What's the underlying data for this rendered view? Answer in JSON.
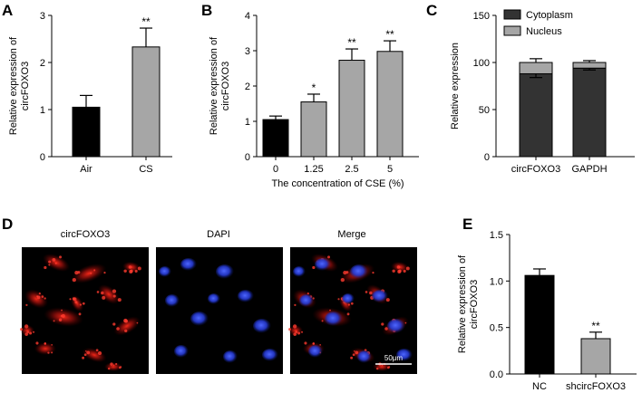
{
  "panels": {
    "A": {
      "letter": "A"
    },
    "B": {
      "letter": "B"
    },
    "C": {
      "letter": "C"
    },
    "D": {
      "letter": "D",
      "image_titles": [
        "circFOXO3",
        "DAPI",
        "Merge"
      ],
      "scale_bar": "50μm"
    },
    "E": {
      "letter": "E"
    }
  },
  "colors": {
    "black": "#000000",
    "gray": "#a6a6a6",
    "dark": "#333333",
    "light": "#a6a6a6",
    "red": "#e0201c",
    "blue": "#2b3ec9"
  },
  "chart_data": [
    {
      "id": "A",
      "type": "bar",
      "categories": [
        "Air",
        "CS"
      ],
      "values": [
        1.05,
        2.33
      ],
      "errors": [
        0.25,
        0.4
      ],
      "significance": [
        "",
        "**"
      ],
      "bar_colors": [
        "#000000",
        "#a6a6a6"
      ],
      "title": "",
      "xlabel": "",
      "ylabel": "Relative expression of circFOXO3",
      "ylim": [
        0,
        3
      ],
      "yticks": [
        "0",
        "1",
        "2",
        "3"
      ]
    },
    {
      "id": "B",
      "type": "bar",
      "categories": [
        "0",
        "1.25",
        "2.5",
        "5"
      ],
      "values": [
        1.05,
        1.55,
        2.73,
        2.98
      ],
      "errors": [
        0.1,
        0.22,
        0.32,
        0.3
      ],
      "significance": [
        "",
        "*",
        "**",
        "**"
      ],
      "bar_colors": [
        "#000000",
        "#a6a6a6",
        "#a6a6a6",
        "#a6a6a6"
      ],
      "title": "",
      "xlabel": "The concentration of CSE (%)",
      "ylabel": "Relative expression of circFOXO3",
      "ylim": [
        0,
        4
      ],
      "yticks": [
        "0",
        "1",
        "2",
        "3",
        "4"
      ]
    },
    {
      "id": "C",
      "type": "bar",
      "stacked": true,
      "categories": [
        "circFOXO3",
        "GAPDH"
      ],
      "series": [
        {
          "name": "Cytoplasm",
          "values": [
            88,
            94
          ],
          "errors": [
            4,
            2
          ],
          "color": "#333333"
        },
        {
          "name": "Nucleus",
          "values": [
            12,
            6
          ],
          "errors": [
            4,
            2
          ],
          "color": "#a6a6a6"
        }
      ],
      "title": "",
      "xlabel": "",
      "ylabel": "Relative expression",
      "ylim": [
        0,
        150
      ],
      "yticks": [
        "0",
        "50",
        "100",
        "150"
      ],
      "legend": "top-left"
    },
    {
      "id": "E",
      "type": "bar",
      "categories": [
        "NC",
        "shcircFOXO3"
      ],
      "values": [
        1.06,
        0.38
      ],
      "errors": [
        0.07,
        0.07
      ],
      "significance": [
        "",
        "**"
      ],
      "bar_colors": [
        "#000000",
        "#a6a6a6"
      ],
      "title": "",
      "xlabel": "",
      "ylabel": "Relative expression of circFOXO3",
      "ylim": [
        0,
        1.5
      ],
      "yticks": [
        "0.0",
        "0.5",
        "1.0",
        "1.5"
      ]
    }
  ]
}
